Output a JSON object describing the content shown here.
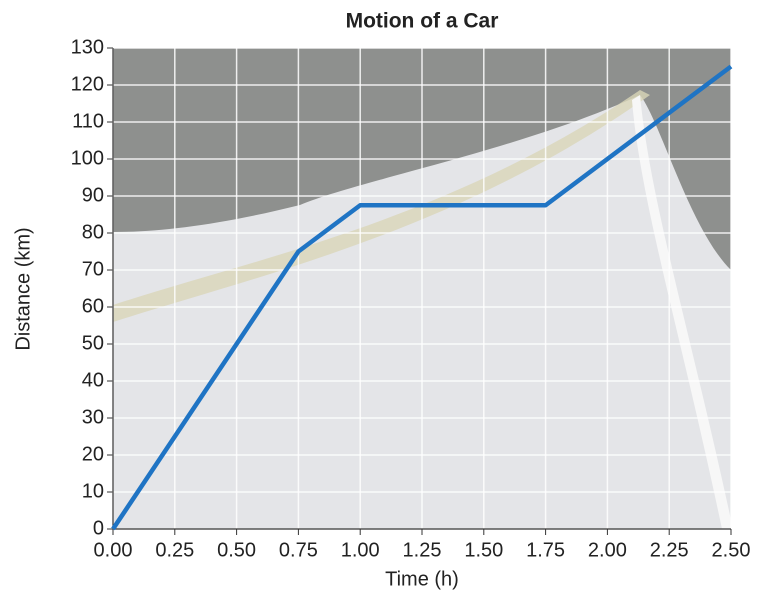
{
  "chart_data": {
    "type": "line",
    "title": "Motion of a Car",
    "x_label": "Time (h)",
    "y_label": "Distance (km)",
    "x": [
      0,
      0.75,
      1,
      1.75,
      2.5
    ],
    "values": [
      0,
      75,
      87.5,
      87.5,
      125
    ],
    "color": "#1f74c4",
    "xlim": [
      0,
      2.5
    ],
    "ylim": [
      0,
      130
    ],
    "xticks": [
      {
        "value": 0,
        "label": "0.00"
      },
      0.25,
      {
        "value": 0.5,
        "label": "0.50"
      },
      0.75,
      {
        "value": 1,
        "label": "1.00"
      },
      1.25,
      {
        "value": 1.5,
        "label": "1.50"
      },
      1.75,
      {
        "value": 2,
        "label": "2.00"
      },
      2.25,
      {
        "value": 2.5,
        "label": "2.50"
      }
    ],
    "yticks": [
      0,
      10,
      20,
      30,
      40,
      50,
      60,
      70,
      80,
      90,
      100,
      110,
      120,
      130
    ],
    "grid": true
  }
}
